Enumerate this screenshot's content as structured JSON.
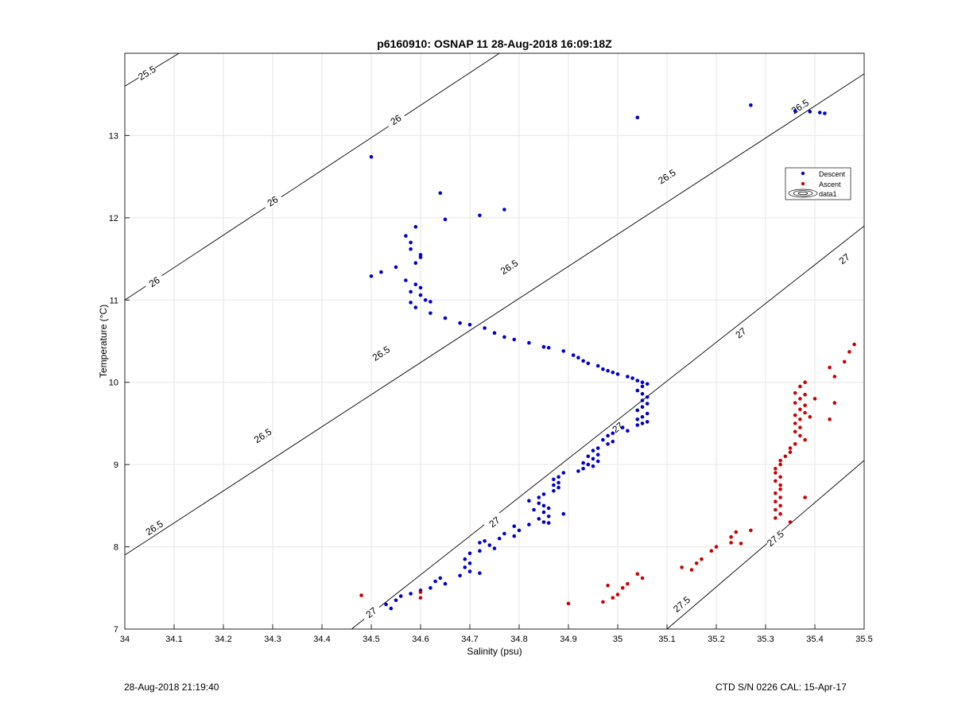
{
  "footer": {
    "left": "28-Aug-2018 21:19:40",
    "right": "CTD S/N 0226  CAL: 15-Apr-17"
  },
  "chart_data": {
    "type": "scatter",
    "title": "p6160910: OSNAP 11 28-Aug-2018 16:09:18Z",
    "xlabel": "Salinity (psu)",
    "ylabel": "Temperature (°C)",
    "xlim": [
      34,
      35.5
    ],
    "ylim": [
      7,
      14
    ],
    "xticks": [
      34,
      34.1,
      34.2,
      34.3,
      34.4,
      34.5,
      34.6,
      34.7,
      34.8,
      34.9,
      35,
      35.1,
      35.2,
      35.3,
      35.4,
      35.5
    ],
    "xtick_labels": [
      "34",
      "34.1",
      "34.2",
      "34.3",
      "34.4",
      "34.5",
      "34.6",
      "34.7",
      "34.8",
      "34.9",
      "35",
      "35.1",
      "35.2",
      "35.3",
      "35.4",
      "35.5"
    ],
    "yticks": [
      7,
      8,
      9,
      10,
      11,
      12,
      13
    ],
    "ytick_labels": [
      "7",
      "8",
      "9",
      "10",
      "11",
      "12",
      "13"
    ],
    "grid": true,
    "legend": {
      "placement": "right",
      "entries": [
        {
          "label": "Descent",
          "color": "#0000cc",
          "marker": "dot"
        },
        {
          "label": "Ascent",
          "color": "#cc0000",
          "marker": "dot"
        },
        {
          "label": "data1",
          "color": "#000000",
          "marker": "contour"
        }
      ]
    },
    "contours": [
      {
        "level": "25.5",
        "lines": [
          [
            [
              34,
              13.6
            ],
            [
              34.11,
              14
            ]
          ]
        ],
        "labels": [
          [
            34.045,
            13.76
          ]
        ]
      },
      {
        "level": "26",
        "lines": [
          [
            [
              34,
              11.0
            ],
            [
              34.76,
              14
            ]
          ]
        ],
        "labels": [
          [
            34.06,
            11.22
          ],
          [
            34.3,
            12.2
          ],
          [
            34.55,
            13.19
          ]
        ]
      },
      {
        "level": "26.5",
        "lines": [
          [
            [
              34,
              7.9
            ],
            [
              35.5,
              13.75
            ]
          ]
        ],
        "labels": [
          [
            34.06,
            8.23
          ],
          [
            34.28,
            9.35
          ],
          [
            34.52,
            10.35
          ],
          [
            34.78,
            11.4
          ],
          [
            35.1,
            12.5
          ],
          [
            35.37,
            13.35
          ]
        ]
      },
      {
        "level": "27",
        "lines": [
          [
            [
              34.46,
              7.0
            ],
            [
              35.5,
              11.9
            ]
          ]
        ],
        "labels": [
          [
            34.5,
            7.2
          ],
          [
            34.75,
            8.3
          ],
          [
            35.0,
            9.45
          ],
          [
            35.25,
            10.6
          ],
          [
            35.46,
            11.5
          ]
        ]
      },
      {
        "level": "27.5",
        "lines": [
          [
            [
              35.1,
              7.0
            ],
            [
              35.5,
              9.05
            ]
          ]
        ],
        "labels": [
          [
            35.13,
            7.3
          ],
          [
            35.32,
            8.1
          ]
        ]
      }
    ],
    "series": [
      {
        "name": "Descent",
        "color": "#0000cc",
        "points": [
          [
            35.27,
            13.37
          ],
          [
            35.36,
            13.3
          ],
          [
            35.39,
            13.29
          ],
          [
            35.41,
            13.28
          ],
          [
            35.42,
            13.27
          ],
          [
            35.04,
            13.22
          ],
          [
            34.5,
            12.74
          ],
          [
            34.64,
            12.3
          ],
          [
            34.77,
            12.1
          ],
          [
            34.72,
            12.03
          ],
          [
            34.65,
            11.98
          ],
          [
            34.59,
            11.89
          ],
          [
            34.57,
            11.78
          ],
          [
            34.58,
            11.7
          ],
          [
            34.58,
            11.62
          ],
          [
            34.6,
            11.55
          ],
          [
            34.6,
            11.52
          ],
          [
            34.59,
            11.45
          ],
          [
            34.55,
            11.4
          ],
          [
            34.52,
            11.34
          ],
          [
            34.5,
            11.29
          ],
          [
            34.57,
            11.24
          ],
          [
            34.59,
            11.19
          ],
          [
            34.6,
            11.15
          ],
          [
            34.58,
            11.1
          ],
          [
            34.6,
            11.06
          ],
          [
            34.61,
            11.0
          ],
          [
            34.58,
            10.97
          ],
          [
            34.62,
            10.98
          ],
          [
            34.59,
            10.91
          ],
          [
            34.62,
            10.84
          ],
          [
            34.65,
            10.78
          ],
          [
            34.68,
            10.72
          ],
          [
            34.7,
            10.7
          ],
          [
            34.73,
            10.66
          ],
          [
            34.75,
            10.6
          ],
          [
            34.77,
            10.55
          ],
          [
            34.79,
            10.52
          ],
          [
            34.82,
            10.48
          ],
          [
            34.85,
            10.43
          ],
          [
            34.86,
            10.42
          ],
          [
            34.89,
            10.38
          ],
          [
            34.91,
            10.33
          ],
          [
            34.92,
            10.3
          ],
          [
            34.93,
            10.26
          ],
          [
            34.94,
            10.23
          ],
          [
            34.96,
            10.2
          ],
          [
            34.97,
            10.16
          ],
          [
            34.98,
            10.14
          ],
          [
            34.99,
            10.12
          ],
          [
            35.0,
            10.1
          ],
          [
            35.02,
            10.07
          ],
          [
            35.03,
            10.05
          ],
          [
            35.04,
            10.02
          ],
          [
            35.05,
            10.0
          ],
          [
            35.06,
            9.98
          ],
          [
            35.05,
            9.95
          ],
          [
            35.04,
            9.9
          ],
          [
            35.05,
            9.86
          ],
          [
            35.06,
            9.82
          ],
          [
            35.05,
            9.78
          ],
          [
            35.06,
            9.74
          ],
          [
            35.05,
            9.7
          ],
          [
            35.04,
            9.66
          ],
          [
            35.06,
            9.62
          ],
          [
            35.05,
            9.58
          ],
          [
            35.04,
            9.55
          ],
          [
            35.06,
            9.52
          ],
          [
            35.05,
            9.5
          ],
          [
            35.04,
            9.48
          ],
          [
            35.01,
            9.45
          ],
          [
            35.02,
            9.41
          ],
          [
            34.99,
            9.38
          ],
          [
            34.98,
            9.35
          ],
          [
            34.97,
            9.3
          ],
          [
            34.99,
            9.28
          ],
          [
            34.98,
            9.25
          ],
          [
            34.96,
            9.2
          ],
          [
            34.95,
            9.17
          ],
          [
            34.96,
            9.12
          ],
          [
            34.94,
            9.1
          ],
          [
            34.95,
            9.07
          ],
          [
            34.96,
            9.04
          ],
          [
            34.93,
            9.02
          ],
          [
            34.94,
            9.0
          ],
          [
            34.95,
            8.98
          ],
          [
            34.93,
            8.95
          ],
          [
            34.92,
            8.92
          ],
          [
            34.89,
            8.9
          ],
          [
            34.88,
            8.85
          ],
          [
            34.87,
            8.82
          ],
          [
            34.88,
            8.78
          ],
          [
            34.87,
            8.75
          ],
          [
            34.88,
            8.72
          ],
          [
            34.87,
            8.68
          ],
          [
            34.85,
            8.64
          ],
          [
            34.84,
            8.6
          ],
          [
            34.82,
            8.56
          ],
          [
            34.84,
            8.53
          ],
          [
            34.85,
            8.5
          ],
          [
            34.86,
            8.47
          ],
          [
            34.83,
            8.45
          ],
          [
            34.85,
            8.42
          ],
          [
            34.89,
            8.4
          ],
          [
            34.86,
            8.37
          ],
          [
            34.84,
            8.34
          ],
          [
            34.85,
            8.3
          ],
          [
            34.86,
            8.29
          ],
          [
            34.82,
            8.27
          ],
          [
            34.79,
            8.25
          ],
          [
            34.8,
            8.2
          ],
          [
            34.77,
            8.16
          ],
          [
            34.79,
            8.13
          ],
          [
            34.76,
            8.1
          ],
          [
            34.73,
            8.07
          ],
          [
            34.72,
            8.05
          ],
          [
            34.74,
            8.02
          ],
          [
            34.75,
            7.98
          ],
          [
            34.72,
            7.95
          ],
          [
            34.7,
            7.92
          ],
          [
            34.69,
            7.85
          ],
          [
            34.7,
            7.8
          ],
          [
            34.69,
            7.75
          ],
          [
            34.7,
            7.7
          ],
          [
            34.72,
            7.68
          ],
          [
            34.68,
            7.65
          ],
          [
            34.64,
            7.62
          ],
          [
            34.63,
            7.58
          ],
          [
            34.65,
            7.55
          ],
          [
            34.62,
            7.5
          ],
          [
            34.6,
            7.47
          ],
          [
            34.58,
            7.43
          ],
          [
            34.56,
            7.4
          ],
          [
            34.55,
            7.35
          ],
          [
            34.53,
            7.3
          ],
          [
            34.54,
            7.25
          ]
        ]
      },
      {
        "name": "Ascent",
        "color": "#cc0000",
        "points": [
          [
            35.48,
            10.46
          ],
          [
            35.47,
            10.37
          ],
          [
            35.46,
            10.25
          ],
          [
            35.43,
            10.18
          ],
          [
            35.44,
            10.07
          ],
          [
            35.38,
            10.0
          ],
          [
            35.37,
            9.95
          ],
          [
            35.36,
            9.87
          ],
          [
            35.38,
            9.85
          ],
          [
            35.4,
            9.8
          ],
          [
            35.37,
            9.8
          ],
          [
            35.36,
            9.75
          ],
          [
            35.38,
            9.72
          ],
          [
            35.37,
            9.67
          ],
          [
            35.38,
            9.63
          ],
          [
            35.36,
            9.6
          ],
          [
            35.39,
            9.58
          ],
          [
            35.37,
            9.55
          ],
          [
            35.36,
            9.5
          ],
          [
            35.37,
            9.45
          ],
          [
            35.36,
            9.4
          ],
          [
            35.37,
            9.35
          ],
          [
            35.38,
            9.3
          ],
          [
            35.36,
            9.25
          ],
          [
            35.35,
            9.2
          ],
          [
            35.35,
            9.15
          ],
          [
            35.34,
            9.1
          ],
          [
            35.33,
            9.05
          ],
          [
            35.33,
            9.0
          ],
          [
            35.32,
            8.95
          ],
          [
            35.32,
            8.9
          ],
          [
            35.33,
            8.85
          ],
          [
            35.32,
            8.8
          ],
          [
            35.33,
            8.75
          ],
          [
            35.33,
            8.7
          ],
          [
            35.32,
            8.65
          ],
          [
            35.33,
            8.6
          ],
          [
            35.32,
            8.55
          ],
          [
            35.33,
            8.5
          ],
          [
            35.32,
            8.45
          ],
          [
            35.33,
            8.4
          ],
          [
            35.32,
            8.35
          ],
          [
            35.35,
            8.3
          ],
          [
            35.44,
            9.75
          ],
          [
            35.43,
            9.55
          ],
          [
            35.38,
            8.6
          ],
          [
            35.27,
            8.2
          ],
          [
            35.24,
            8.18
          ],
          [
            35.23,
            8.12
          ],
          [
            35.23,
            8.05
          ],
          [
            35.25,
            8.04
          ],
          [
            35.2,
            8.0
          ],
          [
            35.19,
            7.95
          ],
          [
            35.17,
            7.85
          ],
          [
            35.16,
            7.8
          ],
          [
            35.15,
            7.72
          ],
          [
            35.13,
            7.75
          ],
          [
            35.04,
            7.67
          ],
          [
            35.05,
            7.62
          ],
          [
            35.02,
            7.55
          ],
          [
            35.01,
            7.5
          ],
          [
            35.0,
            7.42
          ],
          [
            34.98,
            7.53
          ],
          [
            34.97,
            7.33
          ],
          [
            34.99,
            7.38
          ],
          [
            34.9,
            7.31
          ],
          [
            34.6,
            7.45
          ],
          [
            34.6,
            7.38
          ],
          [
            34.48,
            7.41
          ]
        ]
      }
    ]
  }
}
